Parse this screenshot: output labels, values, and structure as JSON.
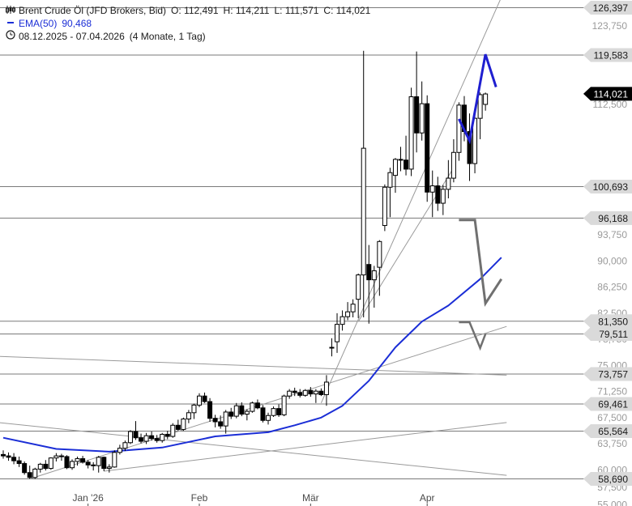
{
  "legend": {
    "instrument": "Brent Crude Öl (JFD Brokers, Bid)",
    "open": "O: 112,491",
    "high": "H: 114,211",
    "low": "L: 111,571",
    "close": "C: 114,021",
    "ema_label": "EMA(50)",
    "ema_value": "90,468",
    "range": "08.12.2025 - 07.04.2026",
    "period": "(4 Monate, 1 Tag)"
  },
  "colors": {
    "ema": "#1b2ed6",
    "projection_up": "#1f1fd0",
    "projection_down": "#707070",
    "candle": "#000000",
    "level_line": "#7a7a7a",
    "trend_line": "#9a9a9a"
  },
  "chart_data": {
    "type": "candlestick",
    "ylim": [
      54.8,
      127.5
    ],
    "y_ticks": [
      "55,000",
      "57,500",
      "60,000",
      "63,750",
      "67,500",
      "71,250",
      "75,000",
      "78,750",
      "82,500",
      "86,250",
      "90,000",
      "93,750",
      "112,500",
      "123,750"
    ],
    "x_ticks": [
      "Jan '26",
      "Feb",
      "Mär",
      "Apr"
    ],
    "candles": [
      {
        "o": 62.2,
        "h": 62.8,
        "l": 61.6,
        "c": 62.0
      },
      {
        "o": 62.0,
        "h": 62.5,
        "l": 61.3,
        "c": 61.8
      },
      {
        "o": 61.8,
        "h": 62.4,
        "l": 60.8,
        "c": 61.3
      },
      {
        "o": 61.3,
        "h": 61.9,
        "l": 60.4,
        "c": 60.9
      },
      {
        "o": 60.9,
        "h": 61.2,
        "l": 59.3,
        "c": 59.6
      },
      {
        "o": 59.6,
        "h": 60.6,
        "l": 58.7,
        "c": 58.9
      },
      {
        "o": 58.9,
        "h": 60.3,
        "l": 58.7,
        "c": 60.1
      },
      {
        "o": 60.1,
        "h": 61.0,
        "l": 59.6,
        "c": 60.8
      },
      {
        "o": 60.8,
        "h": 61.4,
        "l": 59.9,
        "c": 60.2
      },
      {
        "o": 60.2,
        "h": 61.8,
        "l": 60.0,
        "c": 61.7
      },
      {
        "o": 61.7,
        "h": 62.4,
        "l": 61.2,
        "c": 62.0
      },
      {
        "o": 62.0,
        "h": 62.3,
        "l": 61.3,
        "c": 61.9
      },
      {
        "o": 61.9,
        "h": 62.1,
        "l": 60.1,
        "c": 60.3
      },
      {
        "o": 60.3,
        "h": 61.5,
        "l": 60.0,
        "c": 61.2
      },
      {
        "o": 61.2,
        "h": 61.9,
        "l": 60.6,
        "c": 61.6
      },
      {
        "o": 61.6,
        "h": 62.0,
        "l": 60.9,
        "c": 61.1
      },
      {
        "o": 61.1,
        "h": 61.4,
        "l": 60.2,
        "c": 60.7
      },
      {
        "o": 60.7,
        "h": 61.1,
        "l": 59.9,
        "c": 60.6
      },
      {
        "o": 60.6,
        "h": 62.0,
        "l": 59.6,
        "c": 61.8
      },
      {
        "o": 61.8,
        "h": 61.9,
        "l": 59.8,
        "c": 60.2
      },
      {
        "o": 60.2,
        "h": 60.8,
        "l": 59.6,
        "c": 60.4
      },
      {
        "o": 60.4,
        "h": 62.8,
        "l": 60.3,
        "c": 62.5
      },
      {
        "o": 62.5,
        "h": 63.6,
        "l": 62.2,
        "c": 63.1
      },
      {
        "o": 63.1,
        "h": 64.2,
        "l": 62.7,
        "c": 63.9
      },
      {
        "o": 63.9,
        "h": 65.7,
        "l": 63.7,
        "c": 65.5
      },
      {
        "o": 65.5,
        "h": 67.0,
        "l": 64.3,
        "c": 64.6
      },
      {
        "o": 64.6,
        "h": 65.2,
        "l": 63.8,
        "c": 64.1
      },
      {
        "o": 64.1,
        "h": 65.3,
        "l": 63.7,
        "c": 64.9
      },
      {
        "o": 64.9,
        "h": 65.5,
        "l": 64.2,
        "c": 64.5
      },
      {
        "o": 64.5,
        "h": 65.0,
        "l": 63.9,
        "c": 64.2
      },
      {
        "o": 64.2,
        "h": 65.3,
        "l": 63.9,
        "c": 65.1
      },
      {
        "o": 65.1,
        "h": 65.6,
        "l": 64.4,
        "c": 64.8
      },
      {
        "o": 64.8,
        "h": 66.7,
        "l": 64.6,
        "c": 66.4
      },
      {
        "o": 66.4,
        "h": 67.2,
        "l": 65.6,
        "c": 65.8
      },
      {
        "o": 65.8,
        "h": 67.5,
        "l": 65.6,
        "c": 67.3
      },
      {
        "o": 67.3,
        "h": 68.6,
        "l": 66.7,
        "c": 68.2
      },
      {
        "o": 68.2,
        "h": 69.5,
        "l": 67.3,
        "c": 69.3
      },
      {
        "o": 69.3,
        "h": 71.0,
        "l": 69.0,
        "c": 70.6
      },
      {
        "o": 70.6,
        "h": 71.1,
        "l": 69.6,
        "c": 69.8
      },
      {
        "o": 69.8,
        "h": 70.3,
        "l": 66.9,
        "c": 67.4
      },
      {
        "o": 67.4,
        "h": 67.9,
        "l": 66.1,
        "c": 66.9
      },
      {
        "o": 66.9,
        "h": 67.8,
        "l": 65.9,
        "c": 66.3
      },
      {
        "o": 66.3,
        "h": 68.6,
        "l": 65.2,
        "c": 68.3
      },
      {
        "o": 68.3,
        "h": 68.9,
        "l": 67.3,
        "c": 67.7
      },
      {
        "o": 67.7,
        "h": 69.6,
        "l": 67.4,
        "c": 69.2
      },
      {
        "o": 69.2,
        "h": 69.7,
        "l": 67.7,
        "c": 68.0
      },
      {
        "o": 68.0,
        "h": 68.7,
        "l": 67.1,
        "c": 68.4
      },
      {
        "o": 68.4,
        "h": 69.8,
        "l": 68.2,
        "c": 69.6
      },
      {
        "o": 69.6,
        "h": 70.1,
        "l": 68.7,
        "c": 68.9
      },
      {
        "o": 68.9,
        "h": 69.3,
        "l": 66.8,
        "c": 67.1
      },
      {
        "o": 67.1,
        "h": 68.2,
        "l": 66.5,
        "c": 67.8
      },
      {
        "o": 67.8,
        "h": 69.1,
        "l": 67.6,
        "c": 68.8
      },
      {
        "o": 68.8,
        "h": 69.4,
        "l": 67.6,
        "c": 67.9
      },
      {
        "o": 67.9,
        "h": 70.8,
        "l": 67.7,
        "c": 70.6
      },
      {
        "o": 70.6,
        "h": 71.6,
        "l": 70.2,
        "c": 71.3
      },
      {
        "o": 71.3,
        "h": 71.8,
        "l": 70.6,
        "c": 71.1
      },
      {
        "o": 71.1,
        "h": 71.6,
        "l": 70.4,
        "c": 70.7
      },
      {
        "o": 70.7,
        "h": 71.6,
        "l": 70.5,
        "c": 71.4
      },
      {
        "o": 71.4,
        "h": 71.9,
        "l": 70.5,
        "c": 70.9
      },
      {
        "o": 70.9,
        "h": 71.6,
        "l": 69.6,
        "c": 71.3
      },
      {
        "o": 71.3,
        "h": 71.7,
        "l": 70.6,
        "c": 70.8
      },
      {
        "o": 70.8,
        "h": 73.6,
        "l": 69.2,
        "c": 72.6
      },
      {
        "o": 77.6,
        "h": 78.9,
        "l": 76.3,
        "c": 77.6
      },
      {
        "o": 78.4,
        "h": 82.5,
        "l": 76.8,
        "c": 80.9
      },
      {
        "o": 80.9,
        "h": 82.9,
        "l": 80.0,
        "c": 82.0
      },
      {
        "o": 82.0,
        "h": 84.1,
        "l": 81.5,
        "c": 82.7
      },
      {
        "o": 82.7,
        "h": 84.5,
        "l": 81.9,
        "c": 83.8
      },
      {
        "o": 84.5,
        "h": 88.2,
        "l": 81.8,
        "c": 88.0
      },
      {
        "o": 88.0,
        "h": 120.2,
        "l": 81.9,
        "c": 106.2
      },
      {
        "o": 89.5,
        "h": 92.3,
        "l": 81.0,
        "c": 87.3
      },
      {
        "o": 87.3,
        "h": 89.3,
        "l": 83.3,
        "c": 88.6
      },
      {
        "o": 89.1,
        "h": 93.0,
        "l": 85.0,
        "c": 92.8
      },
      {
        "o": 95.1,
        "h": 101.0,
        "l": 94.3,
        "c": 100.6
      },
      {
        "o": 100.6,
        "h": 103.4,
        "l": 96.3,
        "c": 102.7
      },
      {
        "o": 102.3,
        "h": 104.8,
        "l": 99.8,
        "c": 104.6
      },
      {
        "o": 104.6,
        "h": 106.4,
        "l": 102.9,
        "c": 104.5
      },
      {
        "o": 104.5,
        "h": 108.0,
        "l": 102.3,
        "c": 103.2
      },
      {
        "o": 103.2,
        "h": 114.9,
        "l": 102.2,
        "c": 113.6
      },
      {
        "o": 113.6,
        "h": 120.1,
        "l": 105.6,
        "c": 108.4
      },
      {
        "o": 108.4,
        "h": 115.8,
        "l": 107.3,
        "c": 112.6
      },
      {
        "o": 112.6,
        "h": 113.8,
        "l": 98.5,
        "c": 99.9
      },
      {
        "o": 99.9,
        "h": 103.0,
        "l": 96.3,
        "c": 100.8
      },
      {
        "o": 100.8,
        "h": 102.1,
        "l": 97.2,
        "c": 98.3
      },
      {
        "o": 98.3,
        "h": 100.9,
        "l": 96.6,
        "c": 100.3
      },
      {
        "o": 100.3,
        "h": 104.5,
        "l": 99.0,
        "c": 101.9
      },
      {
        "o": 101.9,
        "h": 107.5,
        "l": 101.3,
        "c": 105.6
      },
      {
        "o": 105.6,
        "h": 112.8,
        "l": 104.4,
        "c": 112.4
      },
      {
        "o": 112.4,
        "h": 113.7,
        "l": 107.2,
        "c": 108.6
      },
      {
        "o": 108.6,
        "h": 111.2,
        "l": 101.5,
        "c": 104.0
      },
      {
        "o": 104.0,
        "h": 111.2,
        "l": 102.6,
        "c": 110.5
      },
      {
        "o": 110.5,
        "h": 114.2,
        "l": 107.5,
        "c": 113.9
      },
      {
        "o": 112.5,
        "h": 114.2,
        "l": 111.6,
        "c": 114.0
      }
    ],
    "ema50": [
      {
        "x": 0,
        "y": 64.6
      },
      {
        "x": 10,
        "y": 63.0
      },
      {
        "x": 20,
        "y": 62.6
      },
      {
        "x": 30,
        "y": 63.2
      },
      {
        "x": 40,
        "y": 64.8
      },
      {
        "x": 50,
        "y": 65.4
      },
      {
        "x": 55,
        "y": 66.4
      },
      {
        "x": 60,
        "y": 67.5
      },
      {
        "x": 64,
        "y": 69.2
      },
      {
        "x": 69,
        "y": 72.8
      },
      {
        "x": 74,
        "y": 77.6
      },
      {
        "x": 79,
        "y": 81.3
      },
      {
        "x": 84,
        "y": 83.6
      },
      {
        "x": 90,
        "y": 87.4
      },
      {
        "x": 94,
        "y": 90.5
      }
    ],
    "levels": [
      {
        "value": 126.397,
        "label": "126,397"
      },
      {
        "value": 119.583,
        "label": "119,583"
      },
      {
        "value": 100.693,
        "label": "100,693"
      },
      {
        "value": 96.168,
        "label": "96,168"
      },
      {
        "value": 81.35,
        "label": "81,350"
      },
      {
        "value": 79.511,
        "label": "79,511"
      },
      {
        "value": 73.757,
        "label": "73,757"
      },
      {
        "value": 69.461,
        "label": "69,461"
      },
      {
        "value": 65.564,
        "label": "65,564"
      },
      {
        "value": 58.69,
        "label": "58,690"
      }
    ],
    "last_price": {
      "value": 114.021,
      "label": "114,021"
    },
    "trend_lines": [
      {
        "from": {
          "x": 5,
          "y": 58.7
        },
        "to": {
          "x": 95,
          "y": 80.6
        }
      },
      {
        "from": {
          "x": 19,
          "y": 59.8
        },
        "to": {
          "x": 95,
          "y": 66.8
        }
      },
      {
        "from": {
          "x": -1,
          "y": 66.8
        },
        "to": {
          "x": 95,
          "y": 59.2
        }
      },
      {
        "from": {
          "x": -1,
          "y": 76.3
        },
        "to": {
          "x": 95,
          "y": 73.6
        }
      },
      {
        "from": {
          "x": 60,
          "y": 69.6
        },
        "to": {
          "x": 95,
          "y": 129.6
        }
      },
      {
        "from": {
          "x": 67,
          "y": 81.3
        },
        "to": {
          "x": 85,
          "y": 103.4
        }
      }
    ],
    "projection_up": [
      {
        "x": 86,
        "y": 110.4
      },
      {
        "x": 88,
        "y": 107.3
      },
      {
        "x": 91,
        "y": 119.7
      },
      {
        "x": 93,
        "y": 115.0
      }
    ],
    "projection_down": [
      {
        "x": 86,
        "y": 95.9
      },
      {
        "x": 89,
        "y": 95.9
      },
      {
        "x": 91,
        "y": 83.9
      },
      {
        "x": 94,
        "y": 87.4
      }
    ],
    "projection_minor": [
      {
        "x": 86,
        "y": 81.2
      },
      {
        "x": 88,
        "y": 81.2
      },
      {
        "x": 90,
        "y": 77.5
      },
      {
        "x": 91,
        "y": 79.5
      }
    ],
    "x_tick_positions": [
      {
        "label": "Jan '26",
        "x": 16
      },
      {
        "label": "Feb",
        "x": 37
      },
      {
        "label": "Mär",
        "x": 58
      },
      {
        "label": "Apr",
        "x": 80
      }
    ]
  }
}
